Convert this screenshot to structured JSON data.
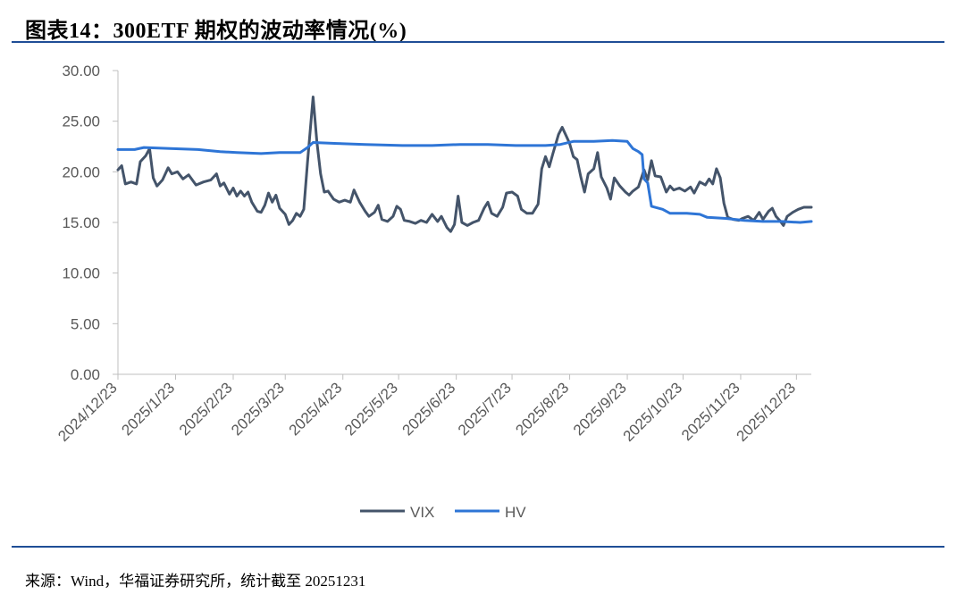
{
  "header": {
    "title": "图表14：300ETF 期权的波动率情况(%)"
  },
  "footer": {
    "source": "来源：Wind，华福证券研究所，统计截至 20251231"
  },
  "chart_data": {
    "type": "line",
    "title": "图表14：300ETF 期权的波动率情况(%)",
    "ylim": [
      0,
      30
    ],
    "y_ticks": [
      "0.00",
      "5.00",
      "10.00",
      "15.00",
      "20.00",
      "25.00",
      "30.00"
    ],
    "x_ticks": [
      "2024/12/23",
      "2025/1/23",
      "2025/2/23",
      "2025/3/23",
      "2025/4/23",
      "2025/5/23",
      "2025/6/23",
      "2025/7/23",
      "2025/8/23",
      "2025/9/23",
      "2025/10/23",
      "2025/11/23",
      "2025/12/23"
    ],
    "grid": false,
    "legend_position": "bottom-center",
    "colors": {
      "VIX": "#44546a",
      "HV": "#2e75d6"
    },
    "series": [
      {
        "name": "VIX",
        "points": [
          [
            "2024-12-23",
            20.2
          ],
          [
            "2024-12-25",
            20.6
          ],
          [
            "2024-12-27",
            18.8
          ],
          [
            "2024-12-30",
            19.0
          ],
          [
            "2025-01-02",
            18.8
          ],
          [
            "2025-01-04",
            21.0
          ],
          [
            "2025-01-07",
            21.6
          ],
          [
            "2025-01-09",
            22.3
          ],
          [
            "2025-01-11",
            19.4
          ],
          [
            "2025-01-13",
            18.6
          ],
          [
            "2025-01-16",
            19.2
          ],
          [
            "2025-01-19",
            20.4
          ],
          [
            "2025-01-21",
            19.8
          ],
          [
            "2025-01-24",
            20.0
          ],
          [
            "2025-01-27",
            19.3
          ],
          [
            "2025-01-30",
            19.7
          ],
          [
            "2025-02-03",
            18.7
          ],
          [
            "2025-02-07",
            19.0
          ],
          [
            "2025-02-11",
            19.2
          ],
          [
            "2025-02-14",
            19.8
          ],
          [
            "2025-02-16",
            18.6
          ],
          [
            "2025-02-18",
            18.9
          ],
          [
            "2025-02-21",
            17.8
          ],
          [
            "2025-02-23",
            18.4
          ],
          [
            "2025-02-25",
            17.6
          ],
          [
            "2025-02-27",
            18.1
          ],
          [
            "2025-03-01",
            17.6
          ],
          [
            "2025-03-03",
            18.0
          ],
          [
            "2025-03-05",
            17.0
          ],
          [
            "2025-03-08",
            16.1
          ],
          [
            "2025-03-10",
            16.0
          ],
          [
            "2025-03-12",
            16.7
          ],
          [
            "2025-03-14",
            17.9
          ],
          [
            "2025-03-16",
            17.0
          ],
          [
            "2025-03-18",
            17.7
          ],
          [
            "2025-03-20",
            16.4
          ],
          [
            "2025-03-23",
            15.8
          ],
          [
            "2025-03-25",
            14.8
          ],
          [
            "2025-03-27",
            15.2
          ],
          [
            "2025-03-29",
            15.9
          ],
          [
            "2025-03-31",
            15.6
          ],
          [
            "2025-04-02",
            16.3
          ],
          [
            "2025-04-04",
            21.0
          ],
          [
            "2025-04-07",
            27.4
          ],
          [
            "2025-04-09",
            23.0
          ],
          [
            "2025-04-11",
            19.8
          ],
          [
            "2025-04-13",
            18.0
          ],
          [
            "2025-04-15",
            18.1
          ],
          [
            "2025-04-18",
            17.3
          ],
          [
            "2025-04-21",
            17.0
          ],
          [
            "2025-04-24",
            17.2
          ],
          [
            "2025-04-27",
            17.0
          ],
          [
            "2025-04-29",
            18.2
          ],
          [
            "2025-05-02",
            17.0
          ],
          [
            "2025-05-05",
            16.1
          ],
          [
            "2025-05-07",
            15.6
          ],
          [
            "2025-05-10",
            16.0
          ],
          [
            "2025-05-12",
            16.7
          ],
          [
            "2025-05-14",
            15.3
          ],
          [
            "2025-05-17",
            15.1
          ],
          [
            "2025-05-20",
            15.6
          ],
          [
            "2025-05-22",
            16.6
          ],
          [
            "2025-05-24",
            16.3
          ],
          [
            "2025-05-26",
            15.2
          ],
          [
            "2025-05-29",
            15.1
          ],
          [
            "2025-06-01",
            14.9
          ],
          [
            "2025-06-04",
            15.2
          ],
          [
            "2025-06-07",
            15.0
          ],
          [
            "2025-06-10",
            15.8
          ],
          [
            "2025-06-13",
            15.1
          ],
          [
            "2025-06-15",
            15.6
          ],
          [
            "2025-06-18",
            14.5
          ],
          [
            "2025-06-20",
            14.1
          ],
          [
            "2025-06-22",
            14.8
          ],
          [
            "2025-06-24",
            17.6
          ],
          [
            "2025-06-26",
            15.0
          ],
          [
            "2025-06-29",
            14.7
          ],
          [
            "2025-07-02",
            15.0
          ],
          [
            "2025-07-05",
            15.2
          ],
          [
            "2025-07-08",
            16.4
          ],
          [
            "2025-07-10",
            17.0
          ],
          [
            "2025-07-12",
            15.9
          ],
          [
            "2025-07-15",
            15.6
          ],
          [
            "2025-07-18",
            16.5
          ],
          [
            "2025-07-20",
            17.9
          ],
          [
            "2025-07-23",
            18.0
          ],
          [
            "2025-07-26",
            17.6
          ],
          [
            "2025-07-28",
            16.3
          ],
          [
            "2025-07-31",
            15.9
          ],
          [
            "2025-08-03",
            15.9
          ],
          [
            "2025-08-06",
            16.8
          ],
          [
            "2025-08-08",
            20.3
          ],
          [
            "2025-08-10",
            21.5
          ],
          [
            "2025-08-12",
            20.5
          ],
          [
            "2025-08-14",
            21.8
          ],
          [
            "2025-08-17",
            23.7
          ],
          [
            "2025-08-19",
            24.4
          ],
          [
            "2025-08-21",
            23.6
          ],
          [
            "2025-08-23",
            22.8
          ],
          [
            "2025-08-25",
            21.5
          ],
          [
            "2025-08-27",
            21.2
          ],
          [
            "2025-08-29",
            19.5
          ],
          [
            "2025-08-31",
            18.0
          ],
          [
            "2025-09-02",
            19.8
          ],
          [
            "2025-09-05",
            20.3
          ],
          [
            "2025-09-07",
            21.9
          ],
          [
            "2025-09-09",
            19.5
          ],
          [
            "2025-09-12",
            18.4
          ],
          [
            "2025-09-14",
            17.3
          ],
          [
            "2025-09-16",
            19.4
          ],
          [
            "2025-09-19",
            18.6
          ],
          [
            "2025-09-22",
            18.0
          ],
          [
            "2025-09-24",
            17.7
          ],
          [
            "2025-09-26",
            18.1
          ],
          [
            "2025-09-29",
            18.5
          ],
          [
            "2025-10-02",
            20.2
          ],
          [
            "2025-10-04",
            19.2
          ],
          [
            "2025-10-06",
            21.1
          ],
          [
            "2025-10-08",
            19.6
          ],
          [
            "2025-10-11",
            19.5
          ],
          [
            "2025-10-14",
            18.0
          ],
          [
            "2025-10-16",
            18.6
          ],
          [
            "2025-10-18",
            18.2
          ],
          [
            "2025-10-21",
            18.4
          ],
          [
            "2025-10-24",
            18.1
          ],
          [
            "2025-10-27",
            18.5
          ],
          [
            "2025-10-29",
            17.9
          ],
          [
            "2025-11-01",
            19.0
          ],
          [
            "2025-11-04",
            18.7
          ],
          [
            "2025-11-06",
            19.3
          ],
          [
            "2025-11-08",
            18.8
          ],
          [
            "2025-11-10",
            20.3
          ],
          [
            "2025-11-12",
            19.4
          ],
          [
            "2025-11-14",
            16.9
          ],
          [
            "2025-11-16",
            15.5
          ],
          [
            "2025-11-19",
            15.3
          ],
          [
            "2025-11-22",
            15.2
          ],
          [
            "2025-11-24",
            15.4
          ],
          [
            "2025-11-27",
            15.6
          ],
          [
            "2025-11-30",
            15.2
          ],
          [
            "2025-12-03",
            16.0
          ],
          [
            "2025-12-05",
            15.3
          ],
          [
            "2025-12-08",
            16.1
          ],
          [
            "2025-12-10",
            16.4
          ],
          [
            "2025-12-12",
            15.6
          ],
          [
            "2025-12-14",
            15.2
          ],
          [
            "2025-12-16",
            14.7
          ],
          [
            "2025-12-18",
            15.6
          ],
          [
            "2025-12-21",
            16.0
          ],
          [
            "2025-12-24",
            16.3
          ],
          [
            "2025-12-27",
            16.5
          ],
          [
            "2025-12-31",
            16.5
          ]
        ]
      },
      {
        "name": "HV",
        "points": [
          [
            "2024-12-23",
            22.2
          ],
          [
            "2025-01-01",
            22.2
          ],
          [
            "2025-01-06",
            22.4
          ],
          [
            "2025-01-20",
            22.3
          ],
          [
            "2025-02-04",
            22.2
          ],
          [
            "2025-02-16",
            22.0
          ],
          [
            "2025-02-25",
            21.9
          ],
          [
            "2025-03-10",
            21.8
          ],
          [
            "2025-03-20",
            21.9
          ],
          [
            "2025-03-31",
            21.9
          ],
          [
            "2025-04-04",
            22.4
          ],
          [
            "2025-04-07",
            22.9
          ],
          [
            "2025-04-20",
            22.8
          ],
          [
            "2025-05-05",
            22.7
          ],
          [
            "2025-05-25",
            22.6
          ],
          [
            "2025-06-10",
            22.6
          ],
          [
            "2025-06-25",
            22.7
          ],
          [
            "2025-07-10",
            22.7
          ],
          [
            "2025-07-25",
            22.6
          ],
          [
            "2025-08-10",
            22.6
          ],
          [
            "2025-08-18",
            22.7
          ],
          [
            "2025-08-25",
            23.0
          ],
          [
            "2025-09-05",
            23.0
          ],
          [
            "2025-09-15",
            23.1
          ],
          [
            "2025-09-23",
            23.0
          ],
          [
            "2025-09-26",
            22.3
          ],
          [
            "2025-09-29",
            22.0
          ],
          [
            "2025-10-01",
            21.7
          ],
          [
            "2025-10-02",
            19.3
          ],
          [
            "2025-10-04",
            18.9
          ],
          [
            "2025-10-06",
            16.6
          ],
          [
            "2025-10-12",
            16.3
          ],
          [
            "2025-10-16",
            15.9
          ],
          [
            "2025-10-25",
            15.9
          ],
          [
            "2025-11-01",
            15.8
          ],
          [
            "2025-11-05",
            15.5
          ],
          [
            "2025-11-15",
            15.4
          ],
          [
            "2025-11-25",
            15.2
          ],
          [
            "2025-12-05",
            15.1
          ],
          [
            "2025-12-15",
            15.1
          ],
          [
            "2025-12-25",
            15.0
          ],
          [
            "2025-12-31",
            15.1
          ]
        ]
      }
    ]
  }
}
